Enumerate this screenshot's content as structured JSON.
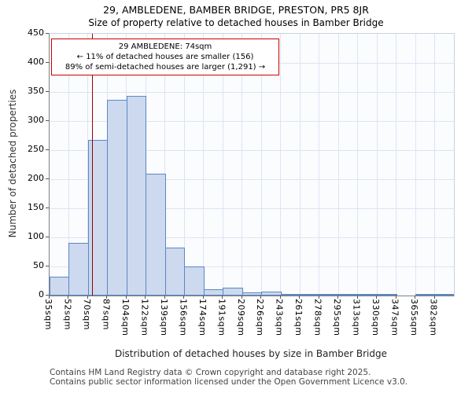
{
  "chart_data": {
    "type": "bar",
    "title": "29, AMBLEDENE, BAMBER BRIDGE, PRESTON, PR5 8JR",
    "subtitle": "Size of property relative to detached houses in Bamber Bridge",
    "xlabel": "Distribution of detached houses by size in Bamber Bridge",
    "ylabel": "Number of detached properties",
    "categories": [
      "35sqm",
      "52sqm",
      "70sqm",
      "87sqm",
      "104sqm",
      "122sqm",
      "139sqm",
      "156sqm",
      "174sqm",
      "191sqm",
      "209sqm",
      "226sqm",
      "243sqm",
      "261sqm",
      "278sqm",
      "295sqm",
      "313sqm",
      "330sqm",
      "347sqm",
      "365sqm",
      "382sqm"
    ],
    "values": [
      33,
      90,
      268,
      337,
      343,
      210,
      82,
      50,
      11,
      13,
      5,
      7,
      2,
      1,
      1,
      1,
      1,
      1,
      0,
      1,
      2
    ],
    "ylim": [
      0,
      450
    ],
    "ytick_step": 50,
    "grid": true,
    "legend": "none",
    "bar_fill": "#ccd9ee",
    "bar_border": "#5c87c5",
    "marker": {
      "value_sqm": 74,
      "color": "#990000"
    },
    "annotation": {
      "line1": "29 AMBLEDENE: 74sqm",
      "line2": "← 11% of detached houses are smaller (156)",
      "line3": "89% of semi-detached houses are larger (1,291) →",
      "border_color": "#cc0000"
    }
  },
  "footer": {
    "line1": "Contains HM Land Registry data © Crown copyright and database right 2025.",
    "line2": "Contains public sector information licensed under the Open Government Licence v3.0."
  }
}
